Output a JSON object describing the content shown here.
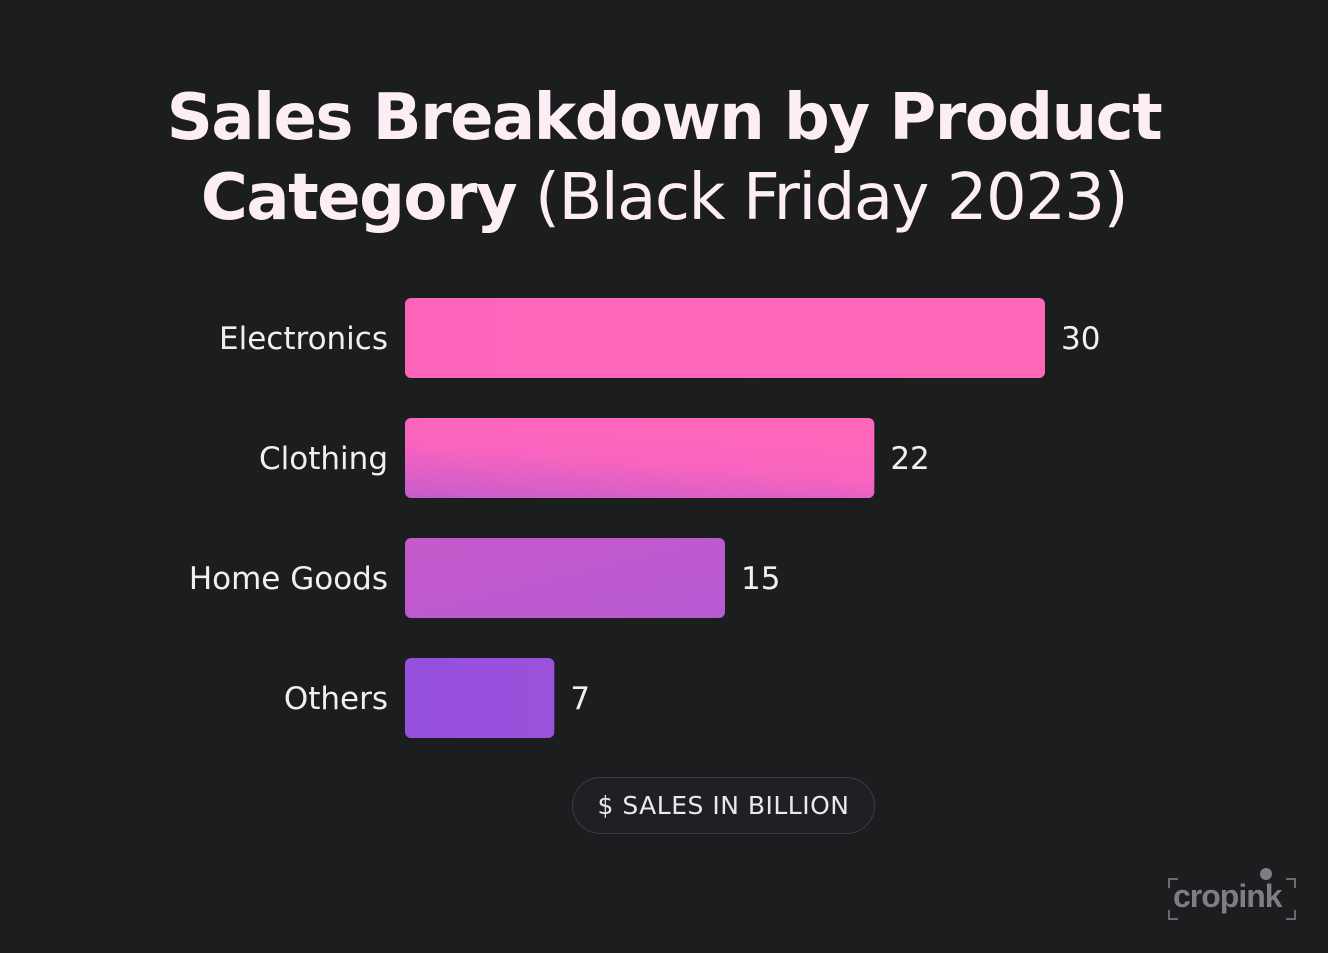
{
  "title": {
    "bold": "Sales Breakdown by Product Category",
    "light": "(Black Friday 2023)"
  },
  "axis_label": "$ SALES IN BILLION",
  "logo": {
    "text": "cropink"
  },
  "colors": {
    "background": "#1c1d1f",
    "text": "#fdeef6",
    "bar_pink": "#ff66bb",
    "bar_magenta": "#c05cce",
    "bar_purple": "#9650de"
  },
  "chart_data": {
    "type": "bar",
    "orientation": "horizontal",
    "title": "Sales Breakdown by Product Category (Black Friday 2023)",
    "xlabel": "$ SALES IN BILLION",
    "ylabel": "",
    "categories": [
      "Electronics",
      "Clothing",
      "Home Goods",
      "Others"
    ],
    "values": [
      30,
      22,
      15,
      7
    ],
    "xlim": [
      0,
      30
    ],
    "grid": false,
    "data_labels": true
  }
}
